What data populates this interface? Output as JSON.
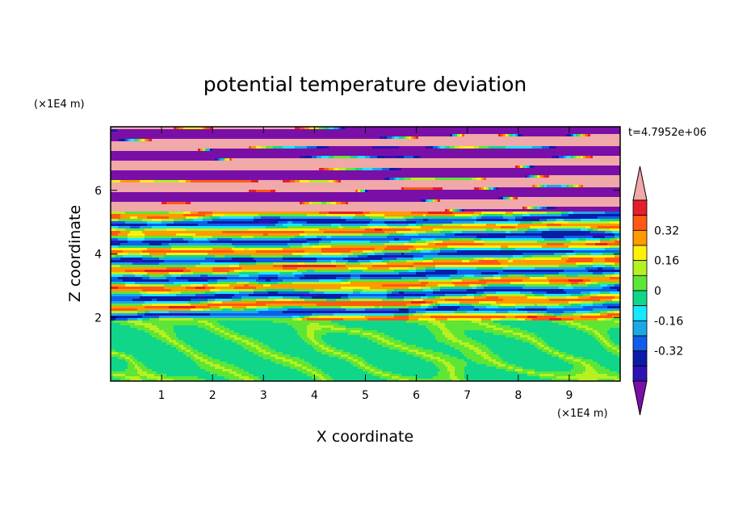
{
  "chart_data": {
    "type": "heatmap",
    "title": "potential temperature deviation",
    "xlabel": "X coordinate",
    "ylabel": "Z coordinate",
    "x_unit": "(×1E4 m)",
    "y_unit": "(×1E4 m)",
    "time_label": "t=4.7952e+06",
    "xlim": [
      0,
      10
    ],
    "ylim": [
      0,
      8
    ],
    "x_ticks": [
      "1",
      "2",
      "3",
      "4",
      "5",
      "6",
      "7",
      "8",
      "9"
    ],
    "y_ticks": [
      "2",
      "4",
      "6"
    ],
    "colorbar": {
      "levels": [
        -0.44,
        -0.4,
        -0.32,
        -0.24,
        -0.16,
        -0.08,
        0,
        0.08,
        0.16,
        0.24,
        0.32,
        0.4
      ],
      "tick_labels": [
        "0.32",
        "0.16",
        "0",
        "-0.16",
        "-0.32"
      ],
      "tick_values": [
        0.32,
        0.16,
        0,
        -0.16,
        -0.32
      ],
      "colors": [
        "#7a0fa8",
        "#2d12b4",
        "#0b1ca6",
        "#0f5fe8",
        "#1aaae8",
        "#16e8ff",
        "#10d68a",
        "#5ee636",
        "#b6f020",
        "#fff00a",
        "#ff9a00",
        "#ff5a14",
        "#e61e2a",
        "#f0a8a8"
      ]
    },
    "layers": [
      {
        "z_range": [
          0,
          1.95
        ],
        "description_values": [
          -0.04,
          0.04
        ],
        "pattern": "swirl"
      },
      {
        "z_range": [
          1.95,
          5.4
        ],
        "description_values": [
          -0.44,
          0.44
        ],
        "pattern": "mixed"
      },
      {
        "z_range": [
          5.4,
          8.0
        ],
        "description_values": [
          -0.44,
          0.44
        ],
        "pattern": "banded"
      }
    ]
  }
}
